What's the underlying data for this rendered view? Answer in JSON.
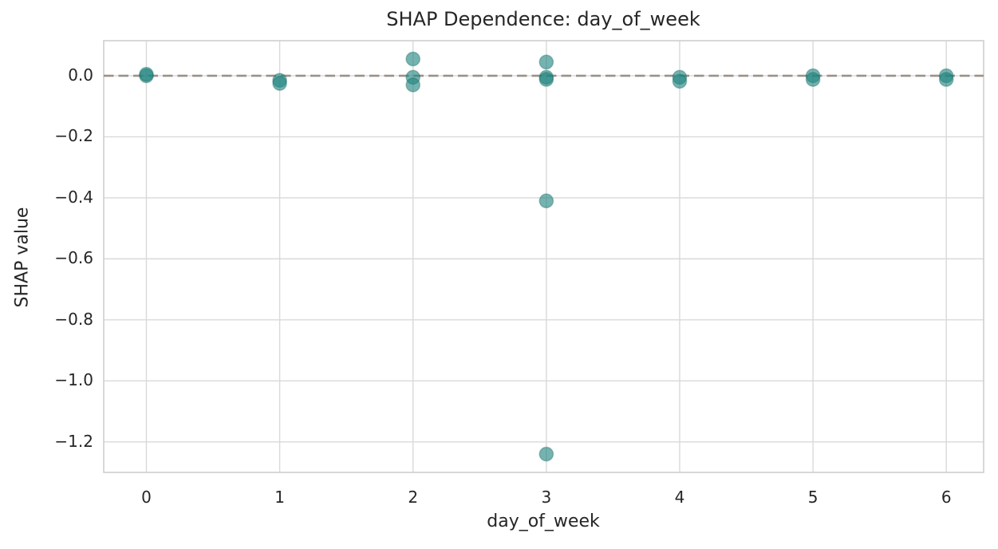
{
  "figure": {
    "background": "#ffffff"
  },
  "chart_data": {
    "type": "scatter",
    "title": "SHAP Dependence: day_of_week",
    "xlabel": "day_of_week",
    "ylabel": "SHAP value",
    "xlim": [
      -0.32,
      6.28
    ],
    "ylim": [
      -1.3,
      0.115
    ],
    "xticks": [
      0,
      1,
      2,
      3,
      4,
      5,
      6
    ],
    "xtick_labels": [
      "0",
      "1",
      "2",
      "3",
      "4",
      "5",
      "6"
    ],
    "yticks": [
      0.0,
      -0.2,
      -0.4,
      -0.6,
      -0.8,
      -1.0,
      -1.2
    ],
    "ytick_labels": [
      "0.0",
      "−0.2",
      "−0.4",
      "−0.6",
      "−0.8",
      "−1.0",
      "−1.2"
    ],
    "grid": true,
    "legend": null,
    "reference_line": {
      "y": 0.0,
      "style": "dashed"
    },
    "points": [
      {
        "x": 0,
        "y": 0.0
      },
      {
        "x": 0,
        "y": 0.005
      },
      {
        "x": 1,
        "y": -0.015
      },
      {
        "x": 1,
        "y": -0.025
      },
      {
        "x": 2,
        "y": 0.055
      },
      {
        "x": 2,
        "y": -0.005
      },
      {
        "x": 2,
        "y": -0.03
      },
      {
        "x": 3,
        "y": 0.045
      },
      {
        "x": 3,
        "y": -0.005
      },
      {
        "x": 3,
        "y": -0.012
      },
      {
        "x": 3,
        "y": -0.41
      },
      {
        "x": 3,
        "y": -1.24
      },
      {
        "x": 4,
        "y": -0.005
      },
      {
        "x": 4,
        "y": -0.018
      },
      {
        "x": 5,
        "y": 0.0
      },
      {
        "x": 5,
        "y": -0.012
      },
      {
        "x": 6,
        "y": 0.0
      },
      {
        "x": 6,
        "y": -0.012
      }
    ],
    "style": {
      "marker_color": "#20847f",
      "marker_alpha": 0.62,
      "marker_edge_color": "#14665f",
      "reference_line_color": "#9a9188",
      "grid_color": "#d9d9d9",
      "spine_color": "#cfcfcf",
      "text_color": "#262626"
    }
  }
}
